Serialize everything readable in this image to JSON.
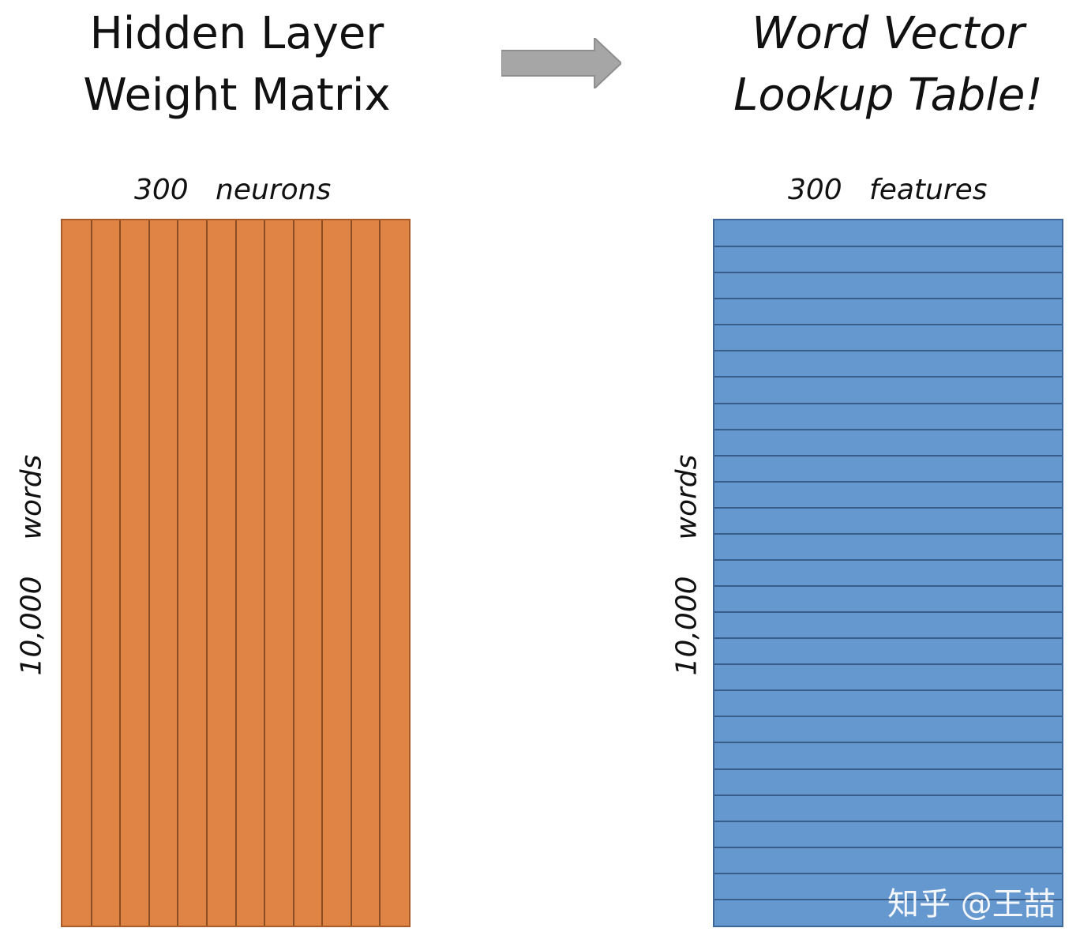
{
  "left": {
    "title_line1": "Hidden Layer",
    "title_line2": "Weight Matrix",
    "top_label": "300   neurons",
    "side_number": "10,000",
    "side_word": "words",
    "color": "#e08446",
    "column_count": 12
  },
  "right": {
    "title_line1": "Word Vector",
    "title_line2": "Lookup Table!",
    "top_label": "300   features",
    "side_number": "10,000",
    "side_word": "words",
    "color": "#6698d0",
    "row_count": 27
  },
  "arrow": {
    "icon": "right-arrow-icon",
    "color": "#a6a6a6"
  },
  "watermark": "知乎 @王喆"
}
